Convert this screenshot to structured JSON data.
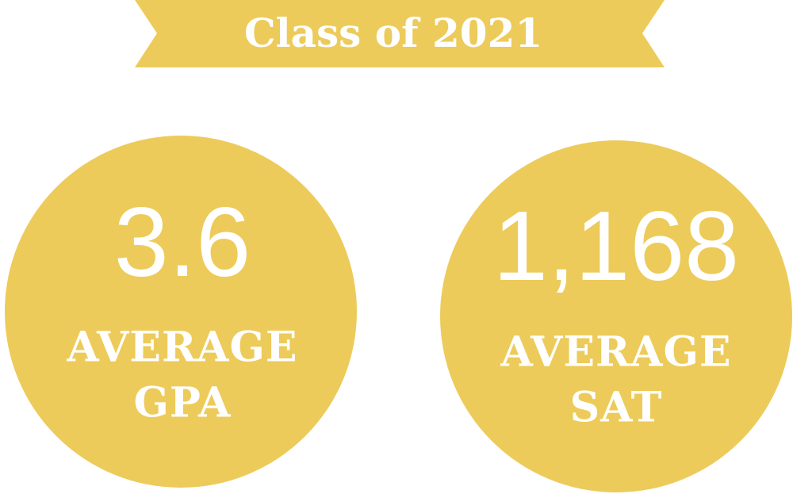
{
  "banner": {
    "title": "Class of 2021"
  },
  "stats": [
    {
      "value": "3.6",
      "label_lines": [
        "AVERAGE",
        "GPA"
      ]
    },
    {
      "value": "1,168",
      "label_lines": [
        "AVERAGE",
        "SAT"
      ]
    }
  ]
}
